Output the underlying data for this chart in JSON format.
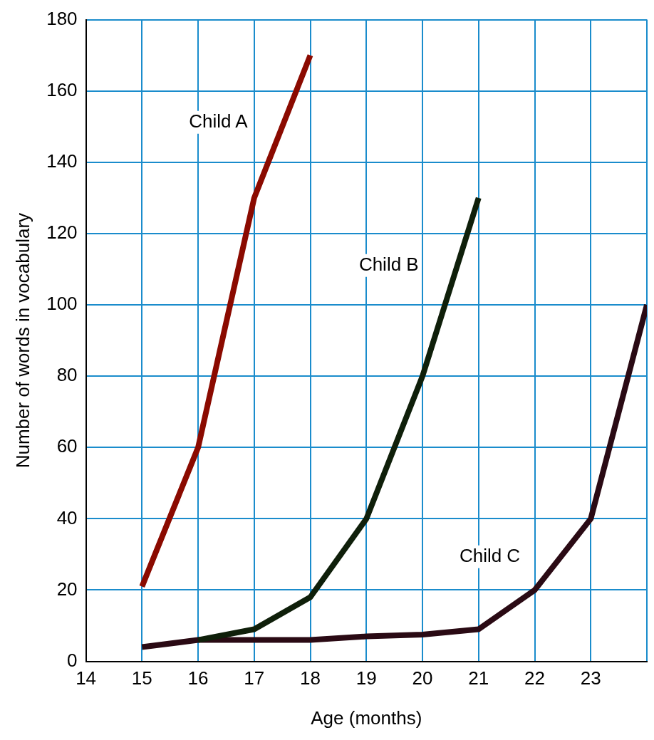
{
  "chart_data": {
    "type": "line",
    "xlabel": "Age (months)",
    "ylabel": "Number of words in vocabulary",
    "xlim": [
      14,
      24
    ],
    "xticks": [
      14,
      15,
      16,
      17,
      18,
      19,
      20,
      21,
      22,
      23,
      {
        "value": 24,
        "label": null
      }
    ],
    "ylim": [
      0,
      180
    ],
    "yticks": [
      0,
      20,
      40,
      60,
      80,
      100,
      120,
      140,
      160,
      180
    ],
    "grid": true,
    "legend": false,
    "marker": "none",
    "line_style": "solid",
    "series": [
      {
        "name": "Child A",
        "color": "#8b0a00",
        "x": [
          15,
          16,
          17,
          18
        ],
        "values": [
          21,
          60,
          130,
          170
        ]
      },
      {
        "name": "Child B",
        "color": "#0f1f0a",
        "x": [
          16,
          17,
          18,
          19,
          20,
          21
        ],
        "values": [
          6,
          9,
          18,
          40,
          80,
          130
        ]
      },
      {
        "name": "Child C",
        "color": "#2a0a14",
        "x": [
          15,
          16,
          17,
          18,
          19,
          20,
          21,
          22,
          23,
          24
        ],
        "values": [
          4,
          6,
          6,
          6,
          7,
          7.5,
          9,
          20,
          40,
          100
        ]
      }
    ]
  }
}
